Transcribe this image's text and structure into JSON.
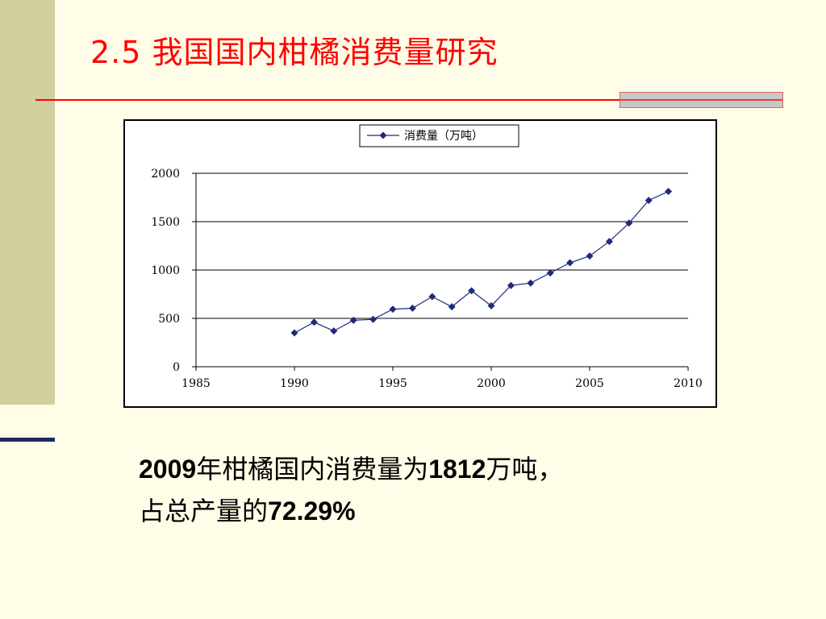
{
  "slide": {
    "title": "2.5  我国国内柑橘消费量研究",
    "caption": {
      "line1_year": "2009",
      "line1_text_a": "年柑橘国内消费量为",
      "line1_value": "1812",
      "line1_text_b": "万吨，",
      "line2_text": "占总产量的",
      "line2_value": "72.29%"
    }
  },
  "colors": {
    "title": "#ff0000",
    "series": "#1f2b7a",
    "sidebar": "#d2cf9e",
    "background": "#fffde7"
  },
  "chart_data": {
    "type": "line",
    "title": "",
    "xlabel": "",
    "ylabel": "",
    "xlim": [
      1985,
      2010
    ],
    "ylim": [
      0,
      2000
    ],
    "x_ticks": [
      1985,
      1990,
      1995,
      2000,
      2005,
      2010
    ],
    "y_ticks": [
      0,
      500,
      1000,
      1500,
      2000
    ],
    "grid": "horizontal",
    "legend_position": "top-center",
    "series": [
      {
        "name": "消费量（万吨）",
        "marker": "diamond",
        "x": [
          1990,
          1991,
          1992,
          1993,
          1994,
          1995,
          1996,
          1997,
          1998,
          1999,
          2000,
          2001,
          2002,
          2003,
          2004,
          2005,
          2006,
          2007,
          2008,
          2009
        ],
        "y": [
          350,
          460,
          370,
          480,
          490,
          595,
          605,
          725,
          620,
          785,
          630,
          840,
          865,
          970,
          1075,
          1145,
          1295,
          1485,
          1720,
          1812
        ]
      }
    ]
  }
}
